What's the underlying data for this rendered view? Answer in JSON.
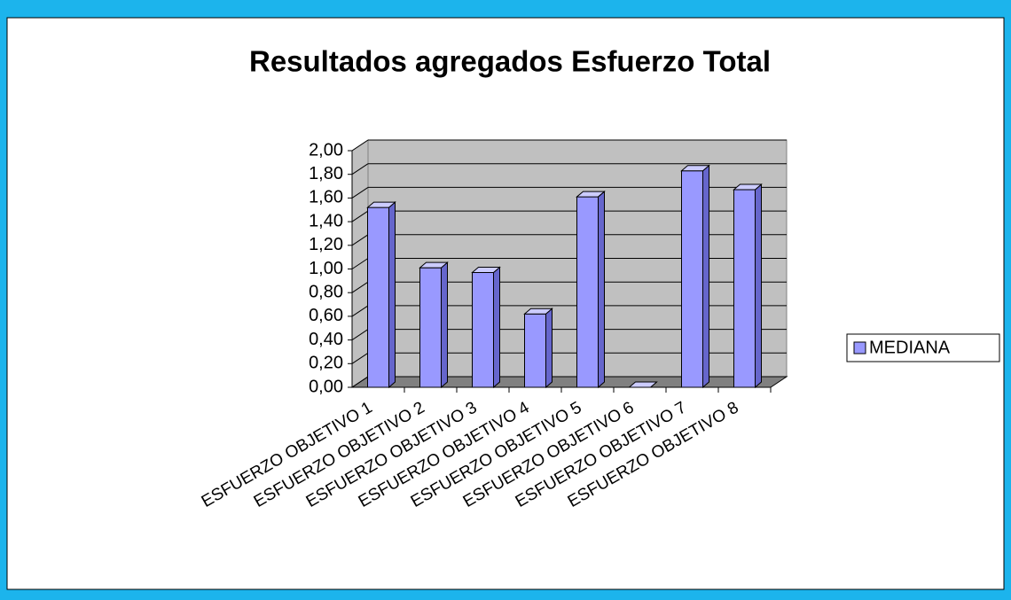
{
  "chart_data": {
    "type": "bar3d",
    "title": "Resultados agregados Esfuerzo Total",
    "categories": [
      "ESFUERZO OBJETIVO 1",
      "ESFUERZO OBJETIVO 2",
      "ESFUERZO OBJETIVO 3",
      "ESFUERZO OBJETIVO 4",
      "ESFUERZO OBJETIVO 5",
      "ESFUERZO OBJETIVO 6",
      "ESFUERZO OBJETIVO 7",
      "ESFUERZO OBJETIVO 8"
    ],
    "series": [
      {
        "name": "MEDIANA",
        "color": "#9999ff",
        "values": [
          1.52,
          1.01,
          0.97,
          0.62,
          1.61,
          0,
          1.83,
          1.67
        ]
      }
    ],
    "ylim": [
      0,
      2
    ],
    "yticks": [
      {
        "value": 0,
        "label": "0,00"
      },
      {
        "value": 0.2,
        "label": "0,20"
      },
      {
        "value": 0.4,
        "label": "0,40"
      },
      {
        "value": 0.6,
        "label": "0,60"
      },
      {
        "value": 0.8,
        "label": "0,80"
      },
      {
        "value": 1,
        "label": "1,00"
      },
      {
        "value": 1.2,
        "label": "1,20"
      },
      {
        "value": 1.4,
        "label": "1,40"
      },
      {
        "value": 1.6,
        "label": "1,60"
      },
      {
        "value": 1.8,
        "label": "1,80"
      },
      {
        "value": 2,
        "label": "2,00"
      }
    ],
    "grid": true,
    "legend": "right"
  }
}
